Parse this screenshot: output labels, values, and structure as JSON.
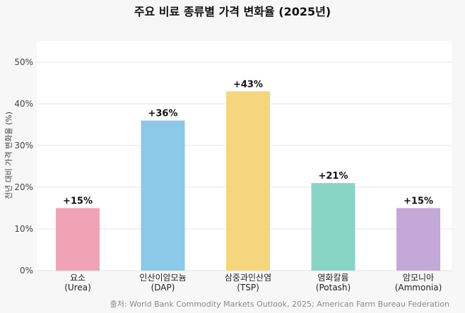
{
  "chart_data": {
    "type": "bar",
    "title": "주요 비료 종류별 가격 변화율 (2025년)",
    "xlabel": "",
    "ylabel": "전년 대비 가격 변화율 (%)",
    "ylim": [
      0,
      55
    ],
    "yticks": [
      0,
      10,
      20,
      30,
      40,
      50
    ],
    "ytick_labels": [
      "0%",
      "10%",
      "20%",
      "30%",
      "40%",
      "50%"
    ],
    "grid": true,
    "categories": [
      {
        "name": "요소",
        "sub": "(Urea)"
      },
      {
        "name": "인산이암모늄",
        "sub": "(DAP)"
      },
      {
        "name": "삼중과인산염",
        "sub": "(TSP)"
      },
      {
        "name": "염화칼륨",
        "sub": "(Potash)"
      },
      {
        "name": "암모니아",
        "sub": "(Ammonia)"
      }
    ],
    "values": [
      15,
      36,
      43,
      21,
      15
    ],
    "value_labels": [
      "+15%",
      "+36%",
      "+43%",
      "+21%",
      "+15%"
    ],
    "colors": [
      "#f0a3b5",
      "#8cc8e8",
      "#f5d67c",
      "#88d5c6",
      "#c4a8d8"
    ],
    "source": "출처: World Bank Commodity Markets Outlook, 2025; American Farm Bureau Federation"
  }
}
